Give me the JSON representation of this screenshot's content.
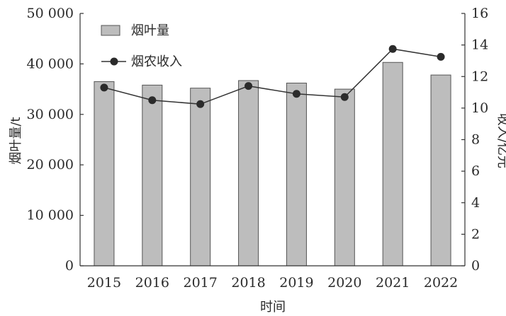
{
  "chart_data": {
    "type": "bar",
    "categories": [
      "2015",
      "2016",
      "2017",
      "2018",
      "2019",
      "2020",
      "2021",
      "2022"
    ],
    "series": [
      {
        "name": "烟叶量",
        "type": "bar",
        "axis": "left",
        "values": [
          36500,
          35800,
          35200,
          36700,
          36200,
          35000,
          40300,
          37800
        ]
      },
      {
        "name": "烟农收入",
        "type": "line",
        "axis": "right",
        "values": [
          11.3,
          10.5,
          10.25,
          11.4,
          10.9,
          10.7,
          13.75,
          13.25
        ]
      }
    ],
    "xlabel": "时间",
    "ylabel_left": "烟叶量/t",
    "ylabel_right": "收入/亿元",
    "ylim_left": [
      0,
      50000
    ],
    "ylim_right": [
      0,
      16
    ],
    "yticks_left": [
      "0",
      "10 000",
      "20 000",
      "30 000",
      "40 000",
      "50 000"
    ],
    "yticks_right": [
      "0",
      "2",
      "4",
      "6",
      "8",
      "10",
      "12",
      "14",
      "16"
    ],
    "grid": false,
    "legend_position": "top-left",
    "colors": {
      "bar_fill": "#bdbdbd",
      "bar_stroke": "#555555",
      "line": "#333333",
      "marker": "#2b2b2b",
      "axis": "#333333"
    }
  }
}
